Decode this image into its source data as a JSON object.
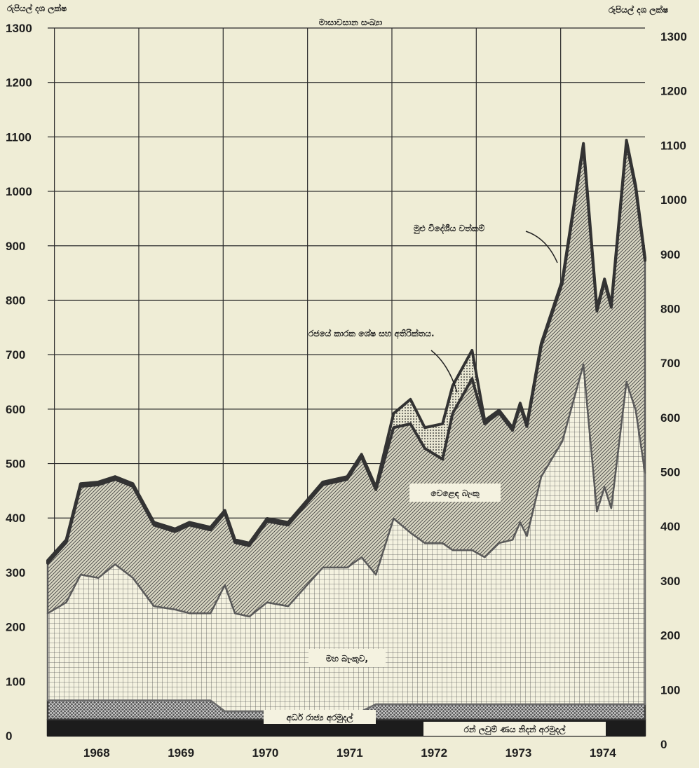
{
  "chart_data": {
    "type": "stacked_area",
    "title": "මාසාවසාන සංඛ්‍යා",
    "y_label": "රුපියල් දශ ලක්ෂ",
    "x": [
      1967.92,
      1968.14,
      1968.31,
      1968.52,
      1968.72,
      1968.93,
      1969.18,
      1969.43,
      1969.6,
      1969.85,
      1970.02,
      1970.14,
      1970.31,
      1970.52,
      1970.77,
      1971.18,
      1971.47,
      1971.64,
      1971.81,
      1972.02,
      1972.22,
      1972.39,
      1972.6,
      1972.72,
      1972.95,
      1973.1,
      1973.27,
      1973.43,
      1973.52,
      1973.6,
      1973.77,
      1974.02,
      1974.27,
      1974.43,
      1974.52,
      1974.6,
      1974.78,
      1974.89,
      1975.0
    ],
    "xlim": [
      1967.92,
      1975.0
    ],
    "xticks": [
      {
        "value": 1968.5,
        "label": "1968"
      },
      {
        "value": 1969.5,
        "label": "1969"
      },
      {
        "value": 1970.5,
        "label": "1970"
      },
      {
        "value": 1971.5,
        "label": "1971"
      },
      {
        "value": 1972.5,
        "label": "1972"
      },
      {
        "value": 1973.5,
        "label": "1973"
      },
      {
        "value": 1974.5,
        "label": "1974"
      }
    ],
    "xgrid": [
      1968,
      1969,
      1970,
      1971,
      1972,
      1973,
      1974
    ],
    "ylim": [
      0,
      1300
    ],
    "yticks": [
      0,
      100,
      200,
      300,
      400,
      500,
      600,
      700,
      800,
      900,
      1000,
      1100,
      1200,
      1300
    ],
    "grid": true,
    "series": [
      {
        "name": "රන් ලවුම් ණය නිදන් අරමුදල්",
        "color": "#1c1c1c",
        "pattern": "solid",
        "values": [
          30,
          30,
          30,
          30,
          30,
          30,
          30,
          30,
          30,
          30,
          30,
          30,
          30,
          30,
          30,
          30,
          30,
          30,
          30,
          30,
          30,
          30,
          30,
          30,
          30,
          30,
          30,
          30,
          30,
          30,
          30,
          30,
          30,
          30,
          30,
          30,
          30,
          30,
          30
        ]
      },
      {
        "name": "අර්ධ රාජ්‍ය අරමුදල්",
        "color": "#3a3a3a",
        "pattern": "crosshatch",
        "values": [
          35,
          35,
          35,
          35,
          35,
          35,
          35,
          35,
          35,
          35,
          15,
          15,
          15,
          15,
          15,
          15,
          15,
          15,
          28,
          28,
          28,
          28,
          28,
          28,
          28,
          28,
          28,
          28,
          28,
          28,
          28,
          28,
          28,
          28,
          28,
          28,
          28,
          28,
          28
        ]
      },
      {
        "name": "මහ බැංකුව,",
        "color": "#6a6a6a",
        "pattern": "grid",
        "values": [
          160,
          180,
          231,
          225,
          250,
          225,
          173,
          167,
          160,
          160,
          232,
          180,
          174,
          200,
          193,
          264,
          264,
          283,
          238,
          341,
          315,
          296,
          296,
          283,
          283,
          270,
          296,
          302,
          334,
          309,
          418,
          483,
          624,
          354,
          399,
          360,
          592,
          540,
          425
        ]
      },
      {
        "name": "වෙළෙඳ බැංකු",
        "color": "#5a5a5a",
        "pattern": "hatch",
        "values": [
          92,
          110,
          162,
          171,
          156,
          168,
          149,
          143,
          162,
          153,
          132,
          130,
          130,
          149,
          149,
          152,
          162,
          184,
          156,
          167,
          200,
          174,
          154,
          251,
          315,
          245,
          239,
          201,
          214,
          201,
          240,
          291,
          401,
          368,
          377,
          369,
          439,
          407,
          390
        ]
      },
      {
        "name": "රජයේ කාරක ශේෂ සහ අතිරික්තය.",
        "color": "#333333",
        "pattern": "dots",
        "values": [
          5,
          5,
          5,
          5,
          5,
          5,
          5,
          5,
          5,
          5,
          5,
          5,
          5,
          5,
          5,
          5,
          5,
          5,
          5,
          26,
          45,
          38,
          65,
          51,
          52,
          6,
          5,
          5,
          5,
          5,
          5,
          5,
          5,
          5,
          5,
          5,
          5,
          5,
          5
        ]
      }
    ],
    "total_label": "මුළු විදේශීය වත්කම්"
  }
}
